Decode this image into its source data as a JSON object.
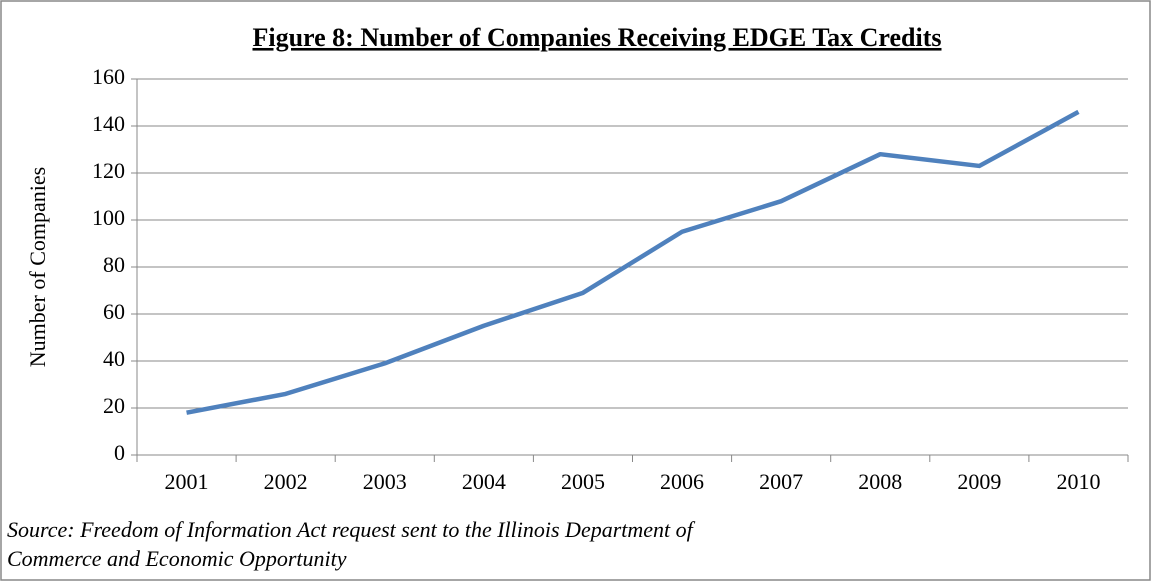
{
  "chart_data": {
    "type": "line",
    "title": "Figure 8: Number of Companies Receiving EDGE Tax Credits",
    "y_label": "Number of Companies",
    "categories": [
      "2001",
      "2002",
      "2003",
      "2004",
      "2005",
      "2006",
      "2007",
      "2008",
      "2009",
      "2010"
    ],
    "series": [
      {
        "name": "Companies",
        "color": "#4f81bd",
        "values": [
          18,
          26,
          39,
          55,
          69,
          95,
          108,
          128,
          123,
          146
        ]
      }
    ],
    "ylim": [
      0,
      160
    ],
    "yticks": [
      0,
      20,
      40,
      60,
      80,
      100,
      120,
      140,
      160
    ],
    "grid": true,
    "source": [
      "Source: Freedom of Information Act request sent to the Illinois Department of",
      "Commerce and Economic Opportunity"
    ]
  }
}
